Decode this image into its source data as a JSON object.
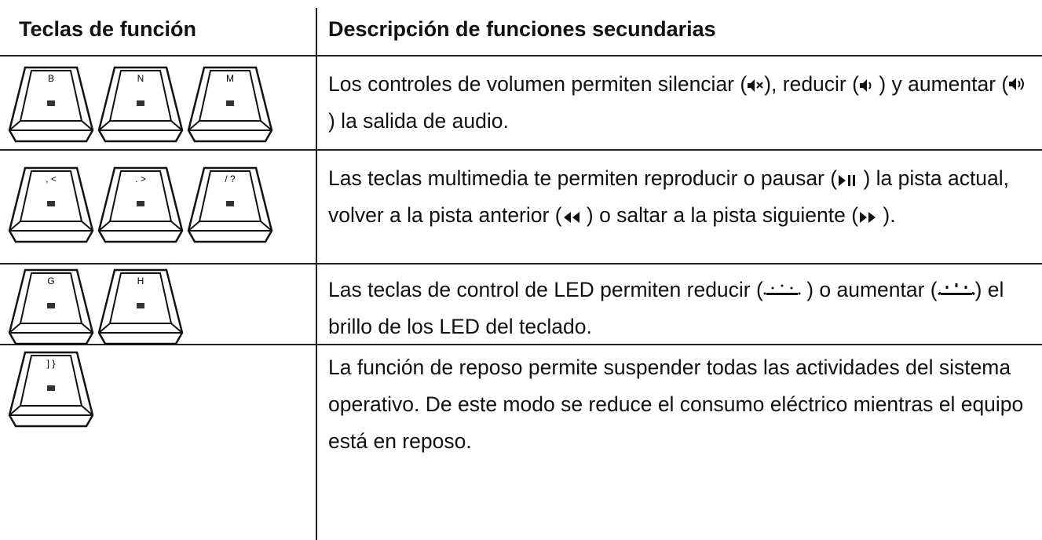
{
  "table": {
    "header": [
      "Teclas de función",
      "Descripción de funciones secundarias"
    ],
    "rows": [
      {
        "keys": [
          "B",
          "N",
          "M"
        ],
        "text": [
          "Los controles de volumen permiten silenciar (",
          "), reducir (",
          " ) y aumentar (",
          ") la salida de audio."
        ]
      },
      {
        "keys": [
          ", <",
          ". >",
          "/ ?"
        ],
        "text": [
          "Las teclas multimedia te permiten reproducir o pausar (",
          " ) la pista actual, volver a la pista anterior (",
          " ) o saltar a la pista siguiente (",
          " )."
        ]
      },
      {
        "keys": [
          "G",
          "H"
        ],
        "text": [
          "Las teclas de control de LED permiten reducir (",
          " ) o aumentar (",
          ") el brillo de los LED del teclado."
        ]
      },
      {
        "keys": [
          "] }"
        ],
        "text": [
          "La función de reposo permite suspender todas las actividades del sistema operativo. De este modo se reduce el consumo eléctrico mientras el equipo está en reposo."
        ]
      }
    ]
  }
}
